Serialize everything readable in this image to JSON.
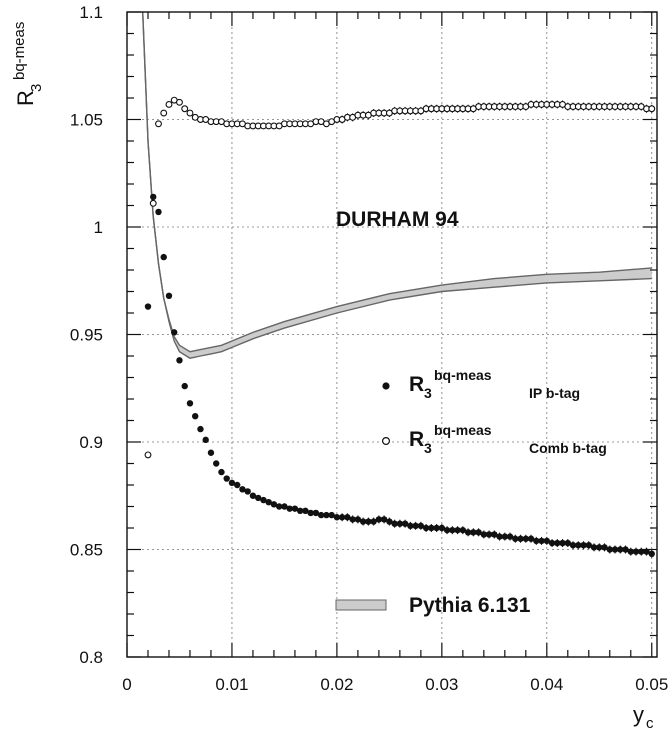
{
  "chart_data": {
    "type": "scatter",
    "xlim": [
      0,
      0.0505
    ],
    "ylim": [
      0.8,
      1.1
    ],
    "x_ticks": [
      "0",
      "0.01",
      "0.02",
      "0.03",
      "0.04",
      "0.05"
    ],
    "x_tick_values": [
      0,
      0.01,
      0.02,
      0.03,
      0.04,
      0.05
    ],
    "y_ticks": [
      "0.8",
      "0.85",
      "0.9",
      "0.95",
      "1",
      "1.05",
      "1.1"
    ],
    "y_tick_values": [
      0.8,
      0.85,
      0.9,
      0.95,
      1.0,
      1.05,
      1.1
    ],
    "grid": true,
    "ylabel": {
      "base": "R",
      "sub": "3",
      "sup": "bq-meas"
    },
    "xlabel": {
      "base": "y",
      "sub": "c"
    },
    "annotation": "DURHAM 94",
    "legend": {
      "placement": "right",
      "entries": [
        {
          "marker": "filled-circle",
          "base": "R",
          "sub3": "3",
          "sup": "bq-meas",
          "sub": "IP b-tag"
        },
        {
          "marker": "open-circle",
          "base": "R",
          "sub3": "3",
          "sup": "bq-meas",
          "sub": "Comb b-tag"
        }
      ],
      "band_label": "Pythia 6.131"
    },
    "series": [
      {
        "name": "IP b-tag",
        "marker": "filled-circle",
        "x": [
          0.002,
          0.0025,
          0.003,
          0.0035,
          0.004,
          0.0045,
          0.005,
          0.0055,
          0.006,
          0.0065,
          0.007,
          0.0075,
          0.008,
          0.0085,
          0.009,
          0.0095,
          0.01,
          0.0105,
          0.011,
          0.0115,
          0.012,
          0.0125,
          0.013,
          0.0135,
          0.014,
          0.0145,
          0.015,
          0.0155,
          0.016,
          0.0165,
          0.017,
          0.0175,
          0.018,
          0.0185,
          0.019,
          0.0195,
          0.02,
          0.0205,
          0.021,
          0.0215,
          0.022,
          0.0225,
          0.023,
          0.0235,
          0.024,
          0.0245,
          0.025,
          0.0255,
          0.026,
          0.0265,
          0.027,
          0.0275,
          0.028,
          0.0285,
          0.029,
          0.0295,
          0.03,
          0.0305,
          0.031,
          0.0315,
          0.032,
          0.0325,
          0.033,
          0.0335,
          0.034,
          0.0345,
          0.035,
          0.0355,
          0.036,
          0.0365,
          0.037,
          0.0375,
          0.038,
          0.0385,
          0.039,
          0.0395,
          0.04,
          0.0405,
          0.041,
          0.0415,
          0.042,
          0.0425,
          0.043,
          0.0435,
          0.044,
          0.0445,
          0.045,
          0.0455,
          0.046,
          0.0465,
          0.047,
          0.0475,
          0.048,
          0.0485,
          0.049,
          0.0495,
          0.05
        ],
        "y": [
          0.963,
          1.014,
          1.007,
          0.986,
          0.968,
          0.951,
          0.938,
          0.926,
          0.918,
          0.912,
          0.906,
          0.901,
          0.895,
          0.89,
          0.886,
          0.883,
          0.881,
          0.88,
          0.878,
          0.877,
          0.875,
          0.874,
          0.873,
          0.872,
          0.871,
          0.87,
          0.87,
          0.869,
          0.869,
          0.868,
          0.868,
          0.867,
          0.867,
          0.866,
          0.866,
          0.866,
          0.865,
          0.865,
          0.865,
          0.864,
          0.864,
          0.863,
          0.863,
          0.863,
          0.864,
          0.864,
          0.863,
          0.862,
          0.862,
          0.862,
          0.861,
          0.861,
          0.861,
          0.86,
          0.86,
          0.86,
          0.86,
          0.859,
          0.859,
          0.859,
          0.859,
          0.858,
          0.858,
          0.858,
          0.857,
          0.857,
          0.857,
          0.856,
          0.856,
          0.856,
          0.855,
          0.855,
          0.855,
          0.855,
          0.854,
          0.854,
          0.854,
          0.853,
          0.853,
          0.853,
          0.853,
          0.852,
          0.852,
          0.852,
          0.852,
          0.851,
          0.851,
          0.851,
          0.85,
          0.85,
          0.85,
          0.85,
          0.849,
          0.849,
          0.849,
          0.849,
          0.848
        ]
      },
      {
        "name": "Comb b-tag",
        "marker": "open-circle",
        "x": [
          0.002,
          0.0025,
          0.003,
          0.0035,
          0.004,
          0.0045,
          0.005,
          0.0055,
          0.006,
          0.0065,
          0.007,
          0.0075,
          0.008,
          0.0085,
          0.009,
          0.0095,
          0.01,
          0.0105,
          0.011,
          0.0115,
          0.012,
          0.0125,
          0.013,
          0.0135,
          0.014,
          0.0145,
          0.015,
          0.0155,
          0.016,
          0.0165,
          0.017,
          0.0175,
          0.018,
          0.0185,
          0.019,
          0.0195,
          0.02,
          0.0205,
          0.021,
          0.0215,
          0.022,
          0.0225,
          0.023,
          0.0235,
          0.024,
          0.0245,
          0.025,
          0.0255,
          0.026,
          0.0265,
          0.027,
          0.0275,
          0.028,
          0.0285,
          0.029,
          0.0295,
          0.03,
          0.0305,
          0.031,
          0.0315,
          0.032,
          0.0325,
          0.033,
          0.0335,
          0.034,
          0.0345,
          0.035,
          0.0355,
          0.036,
          0.0365,
          0.037,
          0.0375,
          0.038,
          0.0385,
          0.039,
          0.0395,
          0.04,
          0.0405,
          0.041,
          0.0415,
          0.042,
          0.0425,
          0.043,
          0.0435,
          0.044,
          0.0445,
          0.045,
          0.0455,
          0.046,
          0.0465,
          0.047,
          0.0475,
          0.048,
          0.0485,
          0.049,
          0.0495,
          0.05
        ],
        "y": [
          0.894,
          1.011,
          1.048,
          1.053,
          1.057,
          1.059,
          1.058,
          1.055,
          1.053,
          1.051,
          1.05,
          1.05,
          1.049,
          1.049,
          1.049,
          1.048,
          1.048,
          1.048,
          1.048,
          1.047,
          1.047,
          1.047,
          1.047,
          1.047,
          1.047,
          1.047,
          1.048,
          1.048,
          1.048,
          1.048,
          1.048,
          1.048,
          1.049,
          1.049,
          1.048,
          1.049,
          1.05,
          1.05,
          1.051,
          1.051,
          1.052,
          1.052,
          1.052,
          1.053,
          1.053,
          1.053,
          1.053,
          1.054,
          1.054,
          1.054,
          1.054,
          1.054,
          1.054,
          1.055,
          1.055,
          1.055,
          1.055,
          1.055,
          1.055,
          1.055,
          1.055,
          1.055,
          1.055,
          1.056,
          1.056,
          1.056,
          1.056,
          1.056,
          1.056,
          1.056,
          1.056,
          1.056,
          1.056,
          1.057,
          1.057,
          1.057,
          1.057,
          1.057,
          1.057,
          1.057,
          1.056,
          1.056,
          1.056,
          1.056,
          1.056,
          1.056,
          1.056,
          1.056,
          1.056,
          1.056,
          1.056,
          1.056,
          1.056,
          1.056,
          1.056,
          1.055,
          1.055
        ]
      }
    ],
    "band": {
      "name": "Pythia 6.131",
      "x": [
        0.0015,
        0.002,
        0.0025,
        0.003,
        0.0035,
        0.004,
        0.0045,
        0.005,
        0.006,
        0.007,
        0.008,
        0.009,
        0.01,
        0.012,
        0.015,
        0.02,
        0.025,
        0.03,
        0.035,
        0.04,
        0.045,
        0.05
      ],
      "lower": [
        1.1,
        1.04,
        1.005,
        0.983,
        0.967,
        0.956,
        0.947,
        0.942,
        0.939,
        0.94,
        0.941,
        0.942,
        0.944,
        0.948,
        0.953,
        0.96,
        0.966,
        0.97,
        0.972,
        0.974,
        0.975,
        0.976
      ],
      "upper": [
        1.1,
        1.04,
        1.005,
        0.983,
        0.967,
        0.957,
        0.949,
        0.945,
        0.942,
        0.943,
        0.944,
        0.945,
        0.947,
        0.951,
        0.956,
        0.963,
        0.969,
        0.973,
        0.976,
        0.978,
        0.979,
        0.981
      ]
    },
    "colors": {
      "axis": "#111111",
      "grid": "#777777",
      "band_fill": "#cccccc",
      "band_edge": "#666666",
      "marker": "#111111"
    }
  }
}
